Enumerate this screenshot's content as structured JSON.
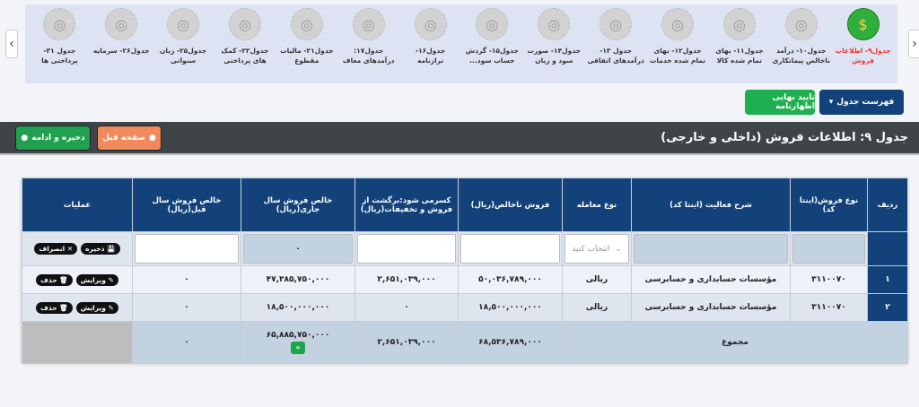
{
  "nav": {
    "items": [
      {
        "label": "جدول۹- اطلاعات فروش",
        "icon": "seller-icon",
        "active": true
      },
      {
        "label": "جدول۱۰- درآمد ناخالص پیمانکاری",
        "icon": "document-chart-icon"
      },
      {
        "label": "جدول۱۱- بهای تمام شده کالا",
        "icon": "calculator-icon"
      },
      {
        "label": "جدول۱۲- بهای تمام شده خدمات",
        "icon": "building-hand-icon"
      },
      {
        "label": "جدول ۱۳- درآمدهای اتفاقی",
        "icon": "coins-bulb-icon"
      },
      {
        "label": "جدول۱۴- صورت سود و زیان",
        "icon": "scale-icon"
      },
      {
        "label": "جدول۱۵- گردش حساب سود...",
        "icon": "bank-flow-icon"
      },
      {
        "label": "جدول۱۶- ترازنامه",
        "icon": "balance-sheet-icon"
      },
      {
        "label": "جدول۱۷: درآمدهای معاف",
        "icon": "growth-money-icon"
      },
      {
        "label": "جدول۲۱- مالیات مقطوع",
        "icon": "tax-icon"
      },
      {
        "label": "جدول۲۲- کمک های پرداختی",
        "icon": "money-award-icon"
      },
      {
        "label": "جدول۲۵- زیان سنواتی",
        "icon": "loss-chart-icon"
      },
      {
        "label": "جدول۲۶- سرمایه",
        "icon": "capital-icon"
      },
      {
        "label": "جدول ۳۱- پرداختی ها",
        "icon": "payments-icon"
      }
    ]
  },
  "toolbar": {
    "table_list": "فهرست جدول",
    "confirm": "تایید نهایی اظهارنامه"
  },
  "header": {
    "title": "جدول ۹: اطلاعات فروش (داخلی و خارجی)",
    "prev": "صفحه قبل",
    "save_next": "ذخیره و ادامه"
  },
  "table": {
    "columns": [
      "ردیف",
      "نوع فروش(اینتا کد)",
      "شرح فعالیت (اینتا کد)",
      "نوع معامله",
      "فروش ناخالص(ریال)",
      "کسرمی شود:برگشت از فروش و تخفیفات(ریال)",
      "خالص فروش سال جاری(ریال)",
      "خالص فروش سال قبل(ریال)",
      "عملیات"
    ],
    "input_row": {
      "select_placeholder": "انتخاب کنید",
      "current_net": "۰",
      "save": "ذخیره",
      "cancel": "انصراف"
    },
    "rows": [
      {
        "idx": "۱",
        "code": "۳۱۱۰۰۷۰",
        "desc": "مؤسسات حسابداری و حسابرسی",
        "type": "ریالی",
        "gross": "۵۰,۰۳۶,۷۸۹,۰۰۰",
        "returns": "۲,۶۵۱,۰۳۹,۰۰۰",
        "net": "۴۷,۳۸۵,۷۵۰,۰۰۰",
        "prev": "۰"
      },
      {
        "idx": "۲",
        "code": "۳۱۱۰۰۷۰",
        "desc": "مؤسسات حسابداری و حسابرسی",
        "type": "ریالی",
        "gross": "۱۸,۵۰۰,۰۰۰,۰۰۰",
        "returns": "۰",
        "net": "۱۸,۵۰۰,۰۰۰,۰۰۰",
        "prev": "۰"
      }
    ],
    "actions": {
      "edit": "ویرایش",
      "delete": "حذف"
    },
    "total": {
      "label": "مجموع",
      "gross": "۶۸,۵۳۶,۷۸۹,۰۰۰",
      "returns": "۲,۶۵۱,۰۳۹,۰۰۰",
      "net": "۶۵,۸۸۵,۷۵۰,۰۰۰",
      "prev": "۰"
    }
  }
}
